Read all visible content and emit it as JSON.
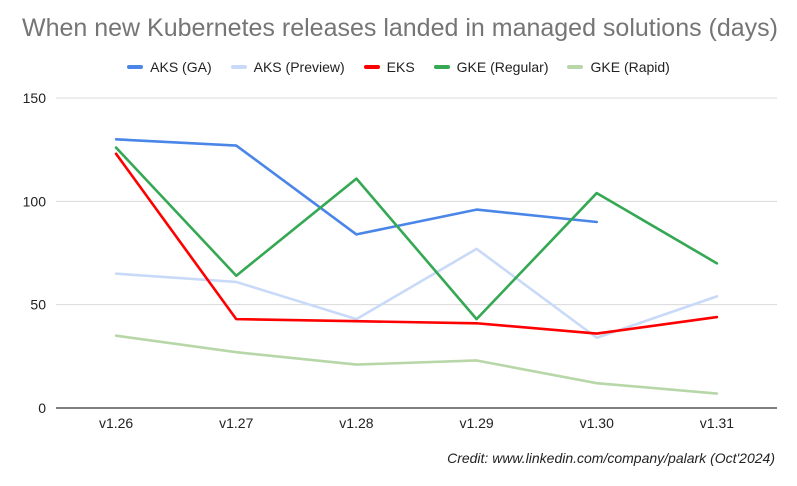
{
  "chart_data": {
    "type": "line",
    "title": "When new Kubernetes releases landed in managed solutions (days)",
    "categories": [
      "v1.26",
      "v1.27",
      "v1.28",
      "v1.29",
      "v1.30",
      "v1.31"
    ],
    "ylim": [
      0,
      150
    ],
    "yticks": [
      0,
      50,
      100,
      150
    ],
    "ytick_labels": [
      "0",
      "50",
      "100",
      "150"
    ],
    "grid": true,
    "legend_position": "top-center",
    "series": [
      {
        "name": "AKS (GA)",
        "color": "#4a86e8",
        "values": [
          130,
          127,
          84,
          96,
          90,
          null
        ]
      },
      {
        "name": "AKS (Preview)",
        "color": "#c9daf8",
        "values": [
          65,
          61,
          43,
          77,
          34,
          54
        ]
      },
      {
        "name": "EKS",
        "color": "#ff0000",
        "values": [
          123,
          43,
          42,
          41,
          36,
          44
        ]
      },
      {
        "name": "GKE (Regular)",
        "color": "#34a853",
        "values": [
          126,
          64,
          111,
          43,
          104,
          70
        ]
      },
      {
        "name": "GKE (Rapid)",
        "color": "#b7d7a8",
        "values": [
          35,
          27,
          21,
          23,
          12,
          7
        ]
      }
    ],
    "credit": "Credit: www.linkedin.com/company/palark (Oct'2024)"
  }
}
